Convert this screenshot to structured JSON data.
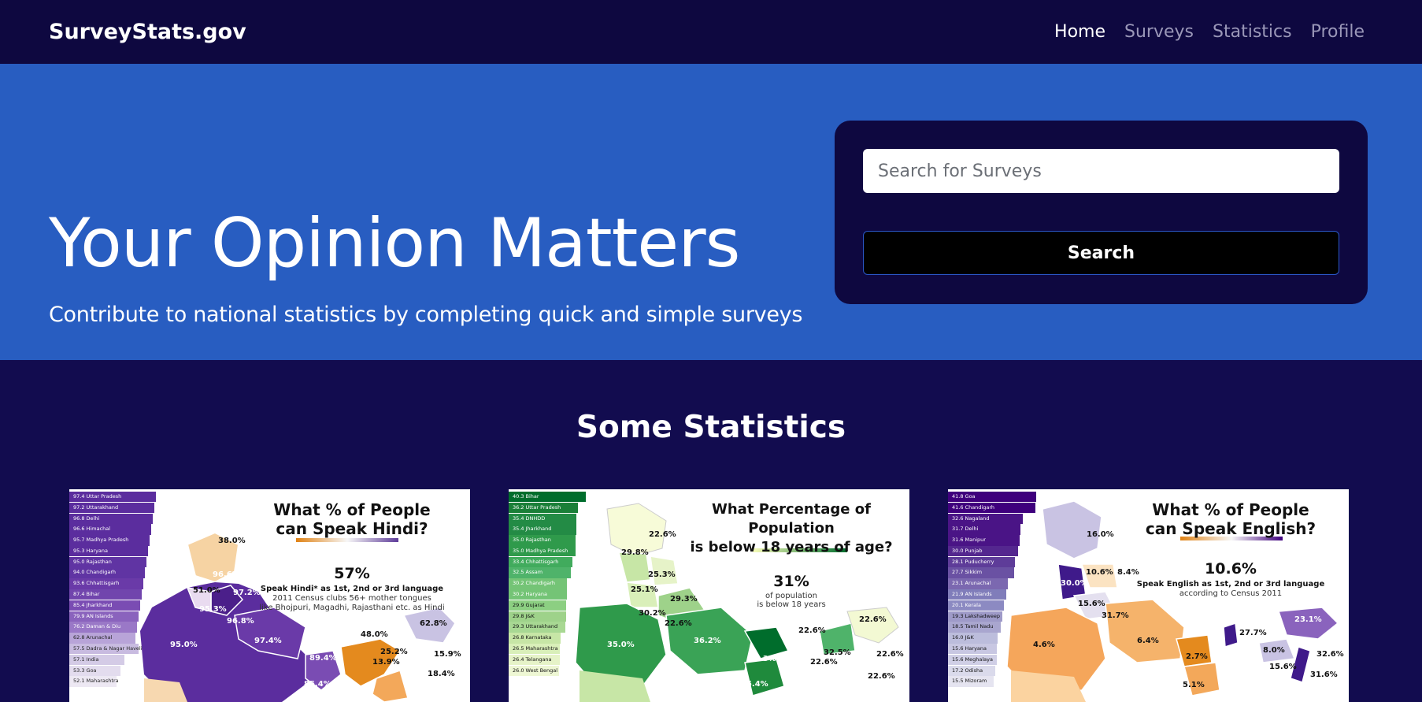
{
  "nav": {
    "brand": "SurveyStats.gov",
    "links": [
      "Home",
      "Surveys",
      "Statistics",
      "Profile"
    ]
  },
  "hero": {
    "title": "Your Opinion Matters",
    "subtitle": "Contribute to national statistics by completing quick and simple surveys"
  },
  "search": {
    "placeholder": "Search for Surveys",
    "button_label": "Search"
  },
  "stats": {
    "heading": "Some Statistics",
    "cards": [
      {
        "title_line1": "What % of People",
        "title_line2": "can Speak Hindi?",
        "headline": "57%",
        "note_line1": "Speak Hindi* as 1st, 2nd or 3rd language",
        "note_line2": "2011 Census clubs 56+ mother tongues",
        "note_line3": "like Bhojpuri, Magadhi, Rajasthani etc. as Hindi",
        "ranks": [
          "97.4 Uttar Pradesh",
          "97.2 Uttarakhand",
          "96.8 Delhi",
          "96.6 Himachal",
          "95.7 Madhya Pradesh",
          "95.3 Haryana",
          "95.0 Rajasthan",
          "94.0 Chandigarh",
          "93.6 Chhattisgarh",
          "87.4 Bihar",
          "85.4 Jharkhand",
          "79.9 AN Islands",
          "76.2 Daman & Diu",
          "62.8 Arunachal",
          "57.5 Dadra & Nagar Haveli",
          "57.1 India",
          "53.3 Goa",
          "52.1 Maharashtra"
        ],
        "color": "#5b2d9e"
      },
      {
        "title_line1": "What Percentage of Population",
        "title_line2": "is below 18 years of age?",
        "headline": "31%",
        "note_line1": "of population",
        "note_line2": "is below 18 years",
        "note_line3": "",
        "ranks": [
          "40.3 Bihar",
          "36.2 Uttar Pradesh",
          "35.4 DNHDD",
          "35.4 Jharkhand",
          "35.0 Rajasthan",
          "35.0 Madhya Pradesh",
          "33.4 Chhattisgarh",
          "32.5 Assam",
          "30.2 Chandigarh",
          "30.2 Haryana",
          "29.9 Gujarat",
          "29.8 J&K",
          "29.3 Uttarakhand",
          "26.8 Karnataka",
          "26.5 Maharashtra",
          "26.4 Telangana",
          "26.0 West Bengal"
        ],
        "color": "#1f8a3c"
      },
      {
        "title_line1": "What % of People",
        "title_line2": "can Speak English?",
        "headline": "10.6%",
        "note_line1": "Speak English as 1st, 2nd or 3rd language",
        "note_line2": "according to Census 2011",
        "note_line3": "",
        "ranks": [
          "41.8 Goa",
          "41.6 Chandigarh",
          "32.6 Nagaland",
          "31.7 Delhi",
          "31.6 Manipur",
          "30.0 Punjab",
          "28.1 Puducherry",
          "27.7 Sikkim",
          "23.1 Arunachal",
          "21.9 AN Islands",
          "20.1 Kerala",
          "19.3 Lakshadweep",
          "18.5 Tamil Nadu",
          "16.0 J&K",
          "15.6 Haryana",
          "15.6 Meghalaya",
          "17.2 Odisha",
          "15.5 Mizoram"
        ],
        "color": "#3f1a8a"
      }
    ]
  }
}
